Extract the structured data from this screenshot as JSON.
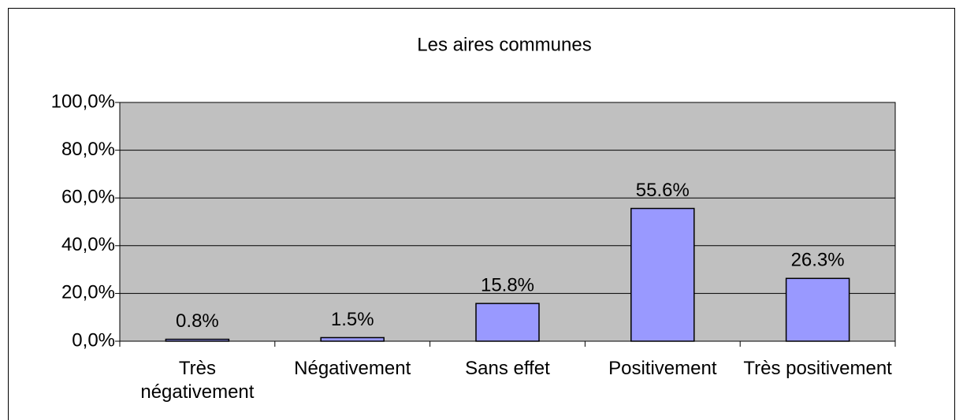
{
  "chart_data": {
    "type": "bar",
    "title": "Les aires communes",
    "categories": [
      "Très négativement",
      "Négativement",
      "Sans effet",
      "Positivement",
      "Très positivement"
    ],
    "values": [
      0.8,
      1.5,
      15.8,
      55.6,
      26.3
    ],
    "value_labels": [
      "0.8%",
      "1.5%",
      "15.8%",
      "55.6%",
      "26.3%"
    ],
    "color": "#9999ff",
    "ylim": [
      0,
      100
    ],
    "yticks": [
      {
        "value": 0,
        "label": "0,0%"
      },
      {
        "value": 20,
        "label": "20,0%"
      },
      {
        "value": 40,
        "label": "40,0%"
      },
      {
        "value": 60,
        "label": "60,0%"
      },
      {
        "value": 80,
        "label": "80,0%"
      },
      {
        "value": 100,
        "label": "100,0%"
      }
    ],
    "grid": true
  }
}
